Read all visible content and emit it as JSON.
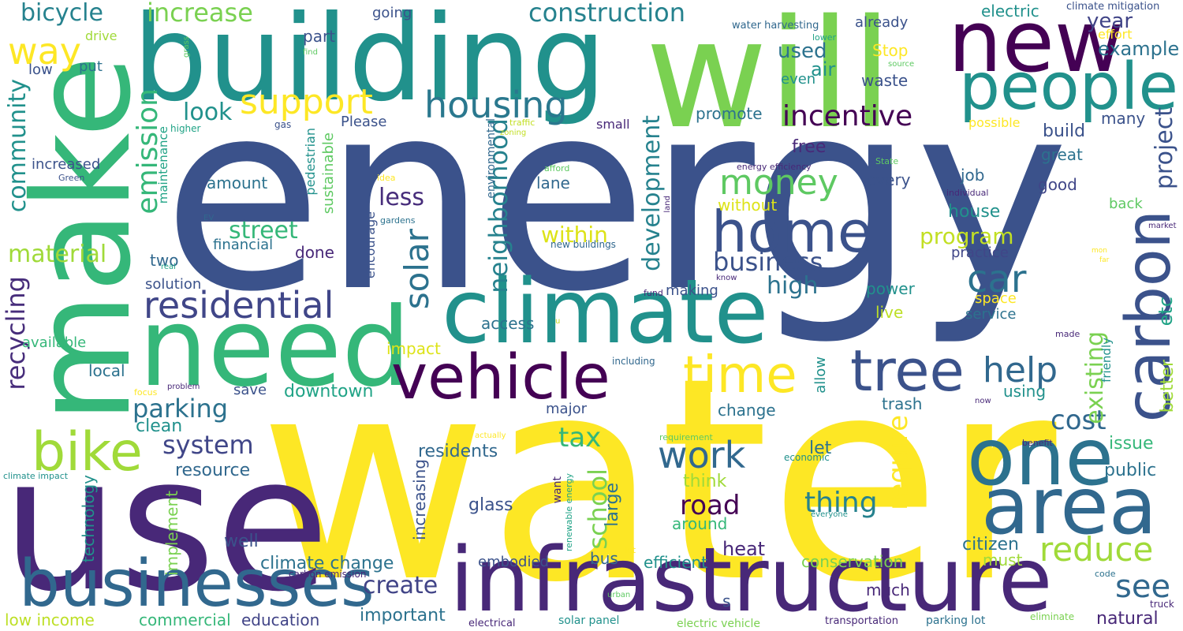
{
  "wordcloud": {
    "energy": {
      "text": "energy",
      "color": "#3b528b"
    },
    "water": {
      "text": "water",
      "color": "#fde725"
    },
    "building": {
      "text": "building",
      "color": "#21918c"
    },
    "will": {
      "text": "will",
      "color": "#7ad151"
    },
    "make": {
      "text": "make",
      "color": "#35b779"
    },
    "use": {
      "text": "use",
      "color": "#482878"
    },
    "new": {
      "text": "new",
      "color": "#440154"
    },
    "need": {
      "text": "need",
      "color": "#35b779"
    },
    "climate": {
      "text": "climate",
      "color": "#21918c"
    },
    "infrastructure": {
      "text": "infrastructure",
      "color": "#482878"
    },
    "people": {
      "text": "people",
      "color": "#21918c"
    },
    "businesses": {
      "text": "businesses",
      "color": "#31688e"
    },
    "home": {
      "text": "home",
      "color": "#3b528b"
    },
    "area": {
      "text": "area",
      "color": "#31688e"
    },
    "one": {
      "text": "one",
      "color": "#2c728e"
    },
    "vehicle": {
      "text": "vehicle",
      "color": "#440154"
    },
    "tree": {
      "text": "tree",
      "color": "#3b528b"
    },
    "carbon": {
      "text": "carbon",
      "color": "#3b528b"
    },
    "bike": {
      "text": "bike",
      "color": "#a0da39"
    },
    "time": {
      "text": "time",
      "color": "#fde725"
    },
    "housing": {
      "text": "housing",
      "color": "#2a788e"
    },
    "residential": {
      "text": "residential",
      "color": "#404688"
    },
    "construction": {
      "text": "construction",
      "color": "#26828e"
    },
    "support": {
      "text": "support",
      "color": "#fde725"
    },
    "way": {
      "text": "way",
      "color": "#fde725"
    },
    "incentive": {
      "text": "incentive",
      "color": "#440154"
    },
    "solar": {
      "text": "solar",
      "color": "#2c728e"
    },
    "help": {
      "text": "help",
      "color": "#31688e"
    },
    "car": {
      "text": "car",
      "color": "#2c728e"
    },
    "reduce": {
      "text": "reduce",
      "color": "#a0da39"
    },
    "work": {
      "text": "work",
      "color": "#31688e"
    },
    "see": {
      "text": "see",
      "color": "#31688e"
    },
    "emission": {
      "text": "emission",
      "color": "#35b779"
    },
    "money": {
      "text": "money",
      "color": "#5ec962"
    },
    "neighborhood": {
      "text": "neighborhood",
      "color": "#26828e"
    },
    "development": {
      "text": "development",
      "color": "#26828e"
    },
    "require": {
      "text": "require",
      "color": "#fde725"
    },
    "community": {
      "text": "community",
      "color": "#21918c"
    },
    "parking": {
      "text": "parking",
      "color": "#2c728e"
    },
    "recycling": {
      "text": "recycling",
      "color": "#472d7b"
    },
    "bicycle": {
      "text": "bicycle",
      "color": "#26828e"
    },
    "increase": {
      "text": "increase",
      "color": "#7ad151"
    },
    "business": {
      "text": "business",
      "color": "#3b528b"
    },
    "cost": {
      "text": "cost",
      "color": "#31688e"
    },
    "thing": {
      "text": "thing",
      "color": "#26828e"
    },
    "road": {
      "text": "road",
      "color": "#440154"
    },
    "create": {
      "text": "create",
      "color": "#414487"
    },
    "tax": {
      "text": "tax",
      "color": "#35b779"
    },
    "system": {
      "text": "system",
      "color": "#404688"
    },
    "street": {
      "text": "street",
      "color": "#35b779"
    },
    "material": {
      "text": "material",
      "color": "#a0da39"
    },
    "school": {
      "text": "school",
      "color": "#7ad151"
    },
    "existing": {
      "text": "existing",
      "color": "#7ad151"
    },
    "project": {
      "text": "project",
      "color": "#3b528b"
    },
    "less": {
      "text": "less",
      "color": "#472d7b"
    },
    "look": {
      "text": "look",
      "color": "#21918c"
    },
    "high": {
      "text": "high",
      "color": "#2c728e"
    },
    "program": {
      "text": "program",
      "color": "#c2df23"
    },
    "within": {
      "text": "within",
      "color": "#dde318"
    },
    "used": {
      "text": "used",
      "color": "#2c728e"
    },
    "air": {
      "text": "air",
      "color": "#21918c"
    },
    "year": {
      "text": "year",
      "color": "#414487"
    },
    "example": {
      "text": "example",
      "color": "#2c728e"
    },
    "better": {
      "text": "better",
      "color": "#a0da39"
    },
    "etc": {
      "text": "etc",
      "color": "#20a386"
    },
    "climate_change": {
      "text": "climate change",
      "color": "#2c728e"
    },
    "downtown": {
      "text": "downtown",
      "color": "#20a386"
    },
    "embodied": {
      "text": "embodied",
      "color": "#3b528b"
    },
    "efficient": {
      "text": "efficient",
      "color": "#21918c"
    },
    "heat": {
      "text": "heat",
      "color": "#482878"
    },
    "conservation": {
      "text": "conservation",
      "color": "#7ad151"
    },
    "citizen": {
      "text": "citizen",
      "color": "#2c728e"
    },
    "must": {
      "text": "must",
      "color": "#a0da39"
    },
    "natural": {
      "text": "natural",
      "color": "#482878"
    },
    "commercial": {
      "text": "commercial",
      "color": "#35b779"
    },
    "low_income": {
      "text": "low income",
      "color": "#bddf26"
    },
    "education": {
      "text": "education",
      "color": "#414487"
    },
    "important": {
      "text": "important",
      "color": "#2c728e"
    },
    "residents": {
      "text": "residents",
      "color": "#31688e"
    },
    "resource": {
      "text": "resource",
      "color": "#31688e"
    },
    "glass": {
      "text": "glass",
      "color": "#3b528b"
    },
    "well": {
      "text": "well",
      "color": "#3b528b"
    },
    "clean": {
      "text": "clean",
      "color": "#21918c"
    },
    "save": {
      "text": "save",
      "color": "#3b528b"
    },
    "local": {
      "text": "local",
      "color": "#2c728e"
    },
    "available": {
      "text": "available",
      "color": "#35b779"
    },
    "solution": {
      "text": "solution",
      "color": "#3b528b"
    },
    "two": {
      "text": "two",
      "color": "#31688e"
    },
    "financial": {
      "text": "financial",
      "color": "#2c728e"
    },
    "done": {
      "text": "done",
      "color": "#482878"
    },
    "amount": {
      "text": "amount",
      "color": "#2c728e"
    },
    "technology": {
      "text": "technology",
      "color": "#21918c"
    },
    "implement": {
      "text": "implement",
      "color": "#7ad151"
    },
    "increasing": {
      "text": "increasing",
      "color": "#3b528b"
    },
    "free": {
      "text": "free",
      "color": "#482878"
    },
    "job": {
      "text": "job",
      "color": "#31688e"
    },
    "house": {
      "text": "house",
      "color": "#21918c"
    },
    "practice": {
      "text": "practice",
      "color": "#404688"
    },
    "power": {
      "text": "power",
      "color": "#21918c"
    },
    "live": {
      "text": "live",
      "color": "#bddf26"
    },
    "space": {
      "text": "space",
      "color": "#fde725"
    },
    "service": {
      "text": "service",
      "color": "#2c728e"
    },
    "public": {
      "text": "public",
      "color": "#2c728e"
    },
    "issue": {
      "text": "issue",
      "color": "#35b779"
    },
    "trash": {
      "text": "trash",
      "color": "#2c728e"
    },
    "using": {
      "text": "using",
      "color": "#21918c"
    },
    "let": {
      "text": "let",
      "color": "#2c728e"
    },
    "think": {
      "text": "think",
      "color": "#a0da39"
    },
    "around": {
      "text": "around",
      "color": "#35b779"
    },
    "much": {
      "text": "much",
      "color": "#482878"
    },
    "change": {
      "text": "change",
      "color": "#2c728e"
    },
    "major": {
      "text": "major",
      "color": "#3b528b"
    },
    "large": {
      "text": "large",
      "color": "#2c728e"
    },
    "bus": {
      "text": "bus",
      "color": "#31688e"
    },
    "s": {
      "text": "s",
      "color": "#3b528b"
    },
    "access": {
      "text": "access",
      "color": "#2c728e"
    },
    "impact": {
      "text": "impact",
      "color": "#dde318"
    },
    "making": {
      "text": "making",
      "color": "#3b528b"
    },
    "lane": {
      "text": "lane",
      "color": "#31688e"
    },
    "without": {
      "text": "without",
      "color": "#dde318"
    },
    "every": {
      "text": "every",
      "color": "#3b528b"
    },
    "good": {
      "text": "good",
      "color": "#404688"
    },
    "great": {
      "text": "great",
      "color": "#2c728e"
    },
    "build": {
      "text": "build",
      "color": "#3b528b"
    },
    "many": {
      "text": "many",
      "color": "#3b528b"
    },
    "possible": {
      "text": "possible",
      "color": "#fde725"
    },
    "small": {
      "text": "small",
      "color": "#482878"
    },
    "promote": {
      "text": "promote",
      "color": "#2c728e"
    },
    "Stop": {
      "text": "Stop",
      "color": "#fde725"
    },
    "waste": {
      "text": "waste",
      "color": "#3b528b"
    },
    "even": {
      "text": "even",
      "color": "#21918c"
    },
    "already": {
      "text": "already",
      "color": "#3b528b"
    },
    "going": {
      "text": "going",
      "color": "#3b528b"
    },
    "part": {
      "text": "part",
      "color": "#3b528b"
    },
    "put": {
      "text": "put",
      "color": "#2c728e"
    },
    "drive": {
      "text": "drive",
      "color": "#a0da39"
    },
    "low": {
      "text": "low",
      "color": "#3b528b"
    },
    "increased": {
      "text": "increased",
      "color": "#3b528b"
    },
    "Green": {
      "text": "Green",
      "color": "#3b528b"
    },
    "maintenance": {
      "text": "maintenance",
      "color": "#20a386"
    },
    "higher": {
      "text": "higher",
      "color": "#20a386"
    },
    "gas": {
      "text": "gas",
      "color": "#3b528b"
    },
    "Please": {
      "text": "Please",
      "color": "#3b528b"
    },
    "pedestrian": {
      "text": "pedestrian",
      "color": "#21918c"
    },
    "sustainable": {
      "text": "sustainable",
      "color": "#5ec962"
    },
    "encourage": {
      "text": "encourage",
      "color": "#3b528b"
    },
    "environmental": {
      "text": "environmental",
      "color": "#31688e"
    },
    "back": {
      "text": "back",
      "color": "#5ec962"
    },
    "effort": {
      "text": "effort",
      "color": "#fde725"
    },
    "electric": {
      "text": "electric",
      "color": "#21918c"
    },
    "climate_mitigation": {
      "text": "climate mitigation",
      "color": "#3b528b"
    },
    "water_harvesting": {
      "text": "water harvesting",
      "color": "#31688e"
    },
    "lower": {
      "text": "lower",
      "color": "#20a386"
    },
    "source": {
      "text": "source",
      "color": "#5ec962"
    },
    "grass": {
      "text": "grass",
      "color": "#5ec962"
    },
    "find": {
      "text": "find",
      "color": "#5ec962"
    },
    "traffic": {
      "text": "traffic",
      "color": "#c2df23"
    },
    "zoning": {
      "text": "zoning",
      "color": "#c2df23"
    },
    "idea": {
      "text": "idea",
      "color": "#fde725"
    },
    "gardens": {
      "text": "gardens",
      "color": "#2c728e"
    },
    "afford": {
      "text": "afford",
      "color": "#5ec962"
    },
    "new_buildings": {
      "text": "new buildings",
      "color": "#31688e"
    },
    "energy_efficiency": {
      "text": "energy efficiency",
      "color": "#482878"
    },
    "State": {
      "text": "State",
      "color": "#5ec962"
    },
    "individual": {
      "text": "individual",
      "color": "#482878"
    },
    "land": {
      "text": "land",
      "color": "#482878"
    },
    "market": {
      "text": "market",
      "color": "#482878"
    },
    "mon": {
      "text": "mon",
      "color": "#fde725"
    },
    "far": {
      "text": "far",
      "color": "#fde725"
    },
    "know": {
      "text": "know",
      "color": "#482878"
    },
    "fund": {
      "text": "fund",
      "color": "#482878"
    },
    "u": {
      "text": "u",
      "color": "#c2df23"
    },
    "EV": {
      "text": "EV",
      "color": "#31688e"
    },
    "real": {
      "text": "real",
      "color": "#20a386"
    },
    "made": {
      "text": "made",
      "color": "#482878"
    },
    "including": {
      "text": "including",
      "color": "#31688e"
    },
    "focus": {
      "text": "focus",
      "color": "#fde725"
    },
    "problem": {
      "text": "problem",
      "color": "#482878"
    },
    "now": {
      "text": "now",
      "color": "#482878"
    },
    "friendly": {
      "text": "friendly",
      "color": "#21918c"
    },
    "allow": {
      "text": "allow",
      "color": "#21918c"
    },
    "actually": {
      "text": "actually",
      "color": "#fde725"
    },
    "requirement": {
      "text": "requirement",
      "color": "#5ec962"
    },
    "economic": {
      "text": "economic",
      "color": "#21918c"
    },
    "benefit": {
      "text": "benefit",
      "color": "#482878"
    },
    "climate_impact": {
      "text": "climate impact",
      "color": "#21918c"
    },
    "renewable_energy": {
      "text": "renewable energy",
      "color": "#20a386"
    },
    "want": {
      "text": "want",
      "color": "#482878"
    },
    "everyone": {
      "text": "everyone",
      "color": "#21918c"
    },
    "lot": {
      "text": "lot",
      "color": "#fde725"
    },
    "urban": {
      "text": "urban",
      "color": "#5ec962"
    },
    "code": {
      "text": "code",
      "color": "#2c728e"
    },
    "carbon_emission": {
      "text": "carbon emission",
      "color": "#482878"
    },
    "truck": {
      "text": "truck",
      "color": "#482878"
    },
    "eliminate": {
      "text": "eliminate",
      "color": "#7ad151"
    },
    "electrical": {
      "text": "electrical",
      "color": "#482878"
    },
    "solar_panel": {
      "text": "solar panel",
      "color": "#21918c"
    },
    "electric_vehicle": {
      "text": "electric vehicle",
      "color": "#7ad151"
    },
    "transportation": {
      "text": "transportation",
      "color": "#482878"
    },
    "parking_lot": {
      "text": "parking lot",
      "color": "#2c728e"
    }
  }
}
